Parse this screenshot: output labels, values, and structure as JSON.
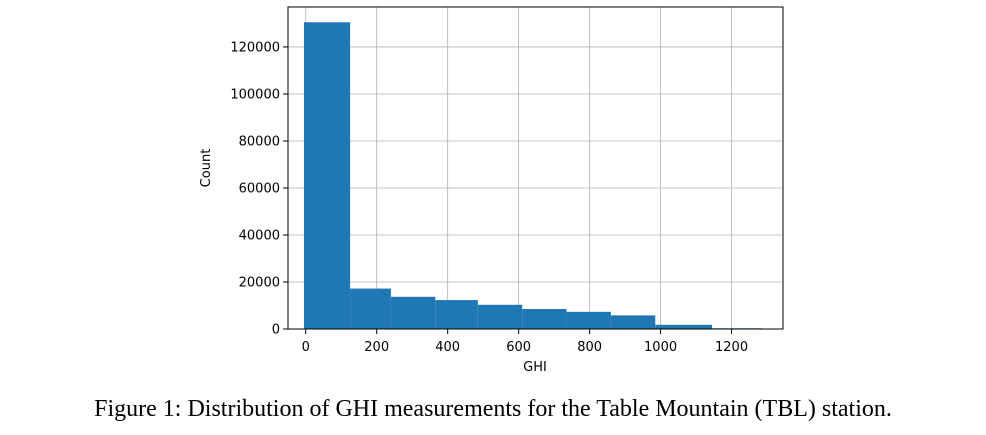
{
  "chart_data": {
    "type": "bar",
    "title": "",
    "xlabel": "GHI",
    "ylabel": "Count",
    "bin_edges": [
      -5,
      125,
      240,
      365,
      485,
      610,
      735,
      860,
      985,
      1145,
      1285
    ],
    "values": [
      130500,
      17200,
      13700,
      12300,
      10300,
      8500,
      7300,
      5800,
      1800,
      300
    ],
    "xlim": [
      -50,
      1345
    ],
    "ylim": [
      0,
      137000
    ],
    "x_ticks": [
      0,
      200,
      400,
      600,
      800,
      1000,
      1200
    ],
    "y_ticks": [
      0,
      20000,
      40000,
      60000,
      80000,
      100000,
      120000
    ],
    "grid": true,
    "bar_color": "#1f77b4"
  },
  "caption": "Figure 1: Distribution of GHI measurements for the Table Mountain (TBL) station."
}
